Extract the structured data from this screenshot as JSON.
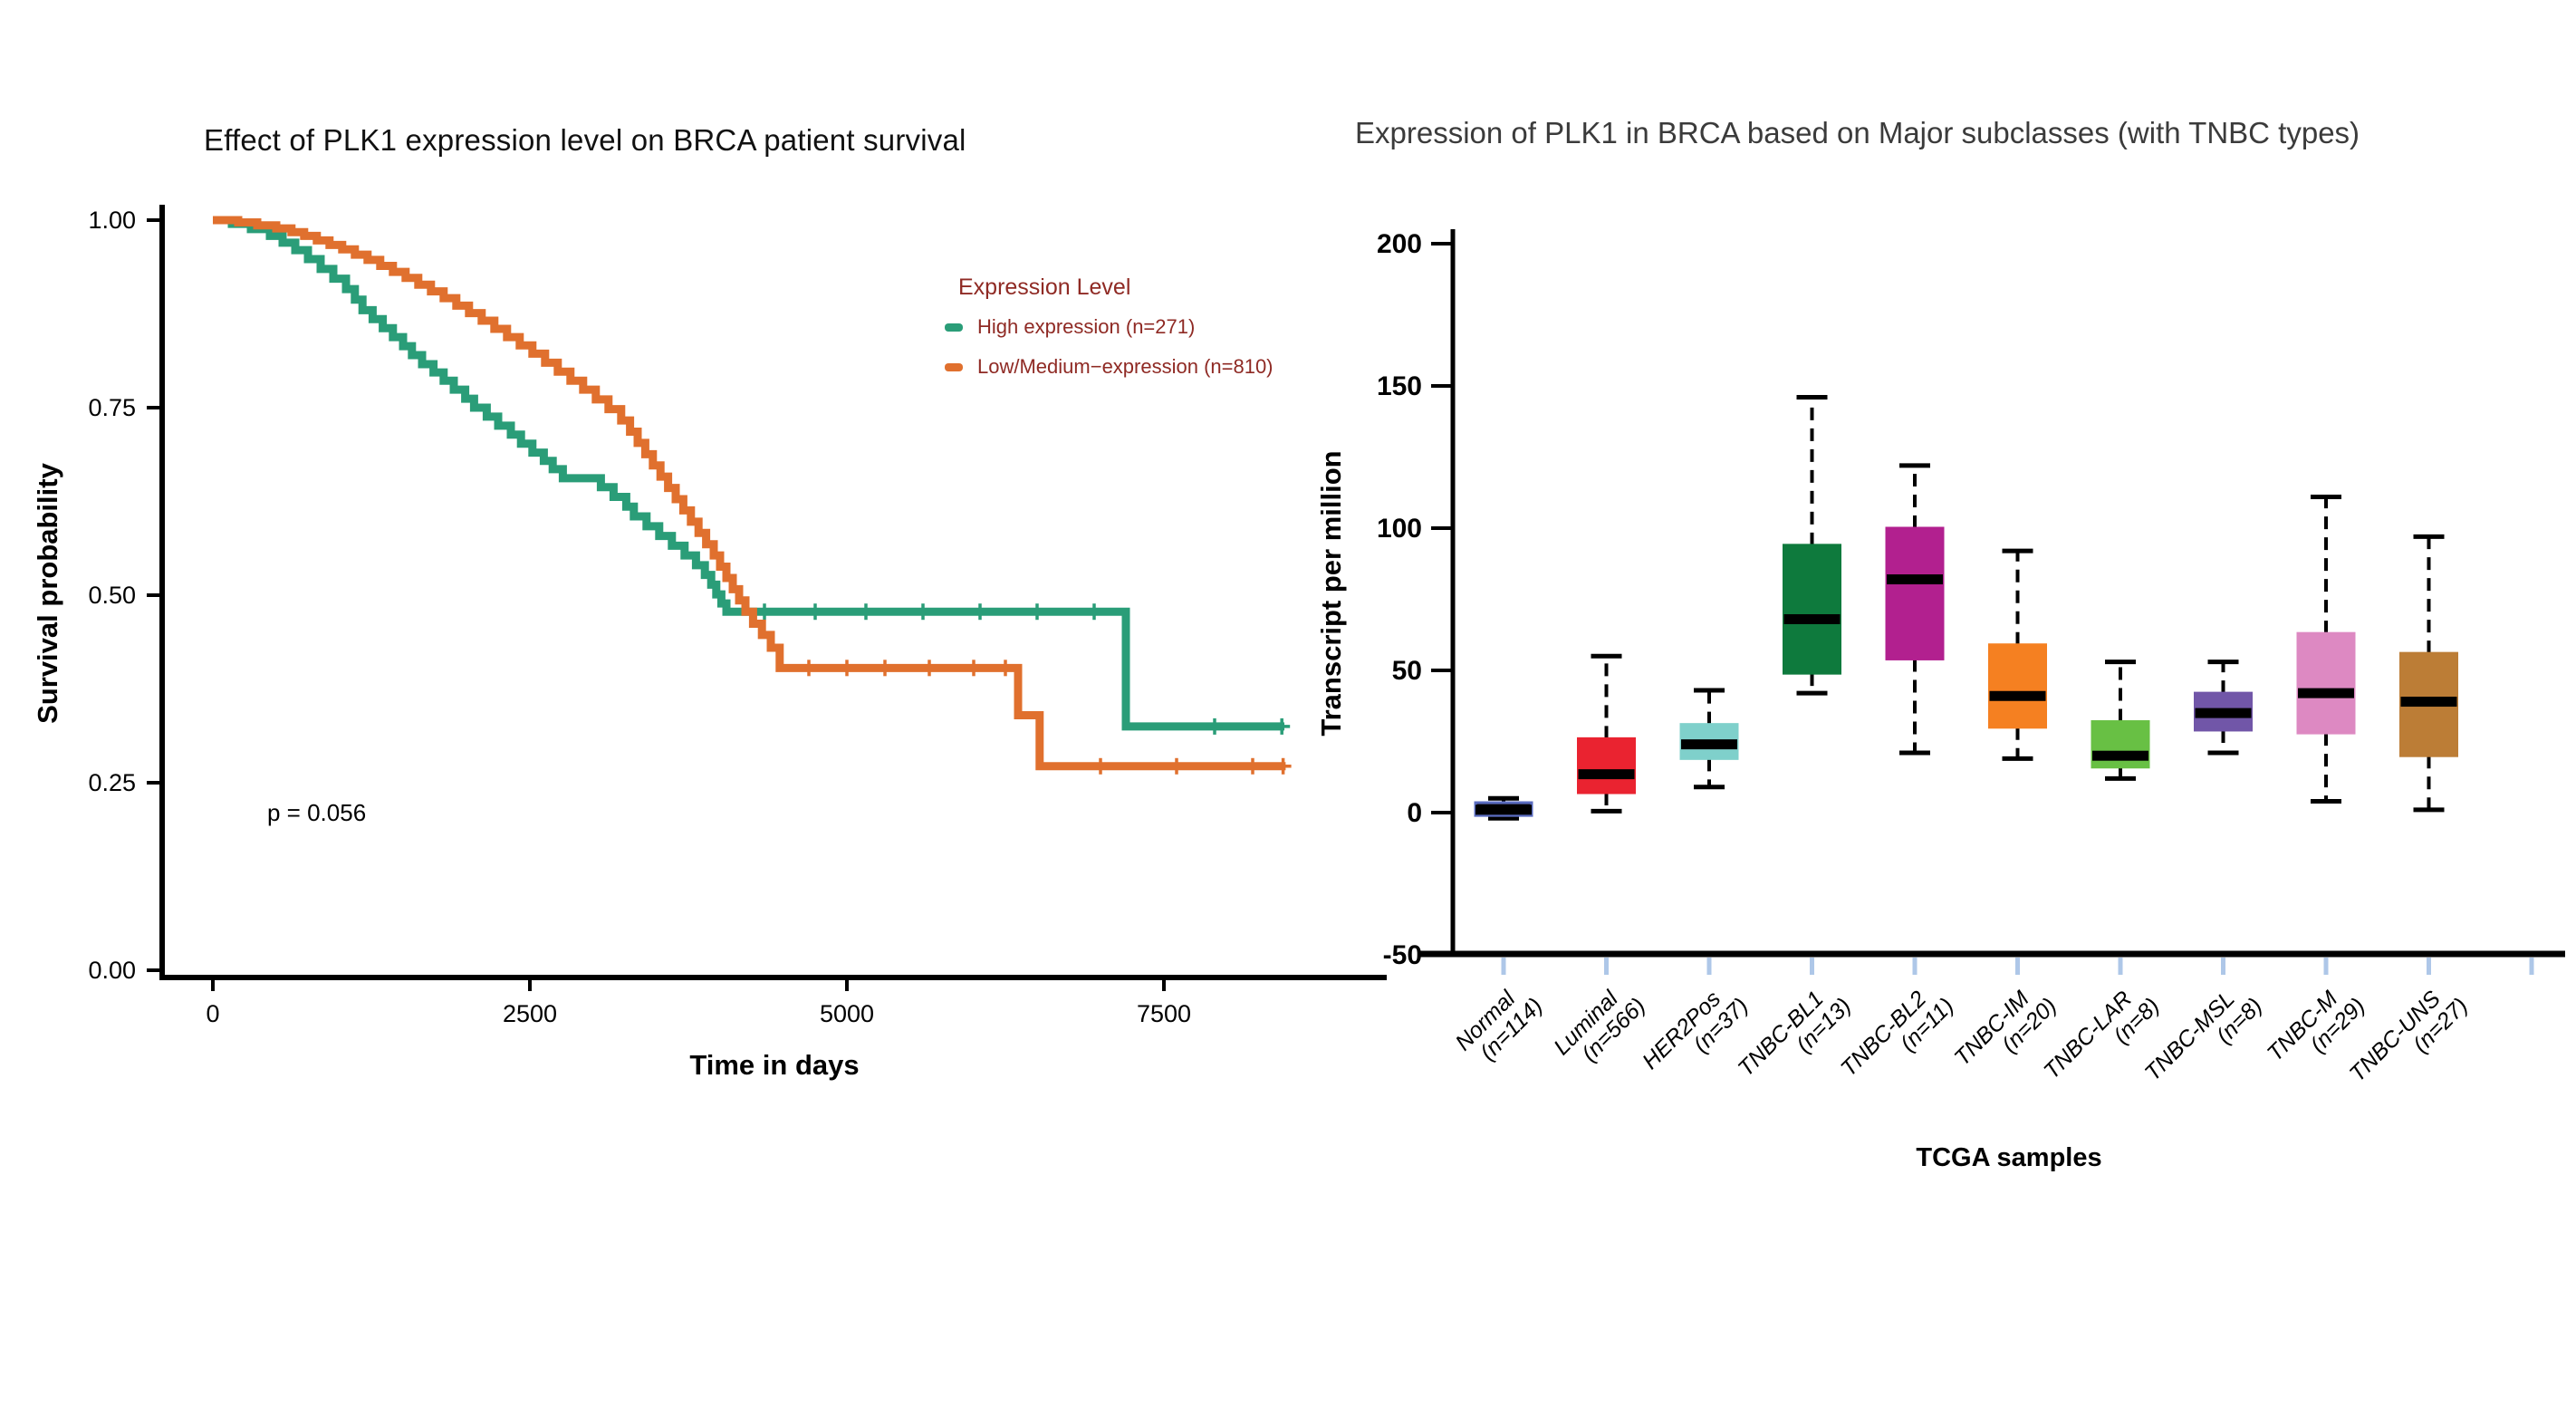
{
  "chart_data": [
    {
      "type": "line",
      "subtype": "kaplan_meier_step",
      "title": "Effect of PLK1 expression level on BRCA patient survival",
      "xlabel": "Time in days",
      "ylabel": "Survival probability",
      "p_value": "p = 0.056",
      "xlim": [
        0,
        9250
      ],
      "ylim": [
        0,
        1
      ],
      "x_ticks": [
        0,
        2500,
        5000,
        7500
      ],
      "y_ticks": [
        {
          "value": 1.0,
          "label": "1.00"
        },
        {
          "value": 0.75,
          "label": "0.75"
        },
        {
          "value": 0.5,
          "label": "0.50"
        },
        {
          "value": 0.25,
          "label": "0.25"
        },
        {
          "value": 0.0,
          "label": "0.00"
        }
      ],
      "grid": false,
      "legend": {
        "title": "Expression Level",
        "color": "#8f2a24",
        "position": "right-upper",
        "items": [
          {
            "label": "High expression (n=271)",
            "color": "#2a9d78"
          },
          {
            "label": "Low/Medium−expression (n=810)",
            "color": "#e0702e"
          }
        ]
      },
      "series": [
        {
          "name": "High expression",
          "n": 271,
          "color": "#2a9d78",
          "points": [
            [
              0,
              1
            ],
            [
              150,
              0.995
            ],
            [
              300,
              0.988
            ],
            [
              450,
              0.979
            ],
            [
              550,
              0.97
            ],
            [
              650,
              0.96
            ],
            [
              750,
              0.948
            ],
            [
              850,
              0.935
            ],
            [
              950,
              0.922
            ],
            [
              1050,
              0.908
            ],
            [
              1120,
              0.894
            ],
            [
              1180,
              0.88
            ],
            [
              1260,
              0.868
            ],
            [
              1340,
              0.856
            ],
            [
              1420,
              0.844
            ],
            [
              1500,
              0.832
            ],
            [
              1570,
              0.82
            ],
            [
              1650,
              0.808
            ],
            [
              1740,
              0.797
            ],
            [
              1820,
              0.786
            ],
            [
              1900,
              0.774
            ],
            [
              1990,
              0.762
            ],
            [
              2060,
              0.75
            ],
            [
              2160,
              0.738
            ],
            [
              2250,
              0.726
            ],
            [
              2350,
              0.714
            ],
            [
              2430,
              0.702
            ],
            [
              2520,
              0.69
            ],
            [
              2610,
              0.679
            ],
            [
              2680,
              0.668
            ],
            [
              2760,
              0.656
            ],
            [
              3060,
              0.644
            ],
            [
              3160,
              0.631
            ],
            [
              3260,
              0.618
            ],
            [
              3320,
              0.605
            ],
            [
              3420,
              0.592
            ],
            [
              3520,
              0.579
            ],
            [
              3620,
              0.566
            ],
            [
              3720,
              0.553
            ],
            [
              3810,
              0.54
            ],
            [
              3880,
              0.527
            ],
            [
              3930,
              0.514
            ],
            [
              3970,
              0.501
            ],
            [
              4010,
              0.489
            ],
            [
              4050,
              0.478
            ],
            [
              7200,
              0.478
            ],
            [
              7200,
              0.325
            ],
            [
              8450,
              0.325
            ]
          ],
          "censor_marks": [
            [
              4350,
              0.478
            ],
            [
              4750,
              0.478
            ],
            [
              5150,
              0.478
            ],
            [
              5600,
              0.478
            ],
            [
              6050,
              0.478
            ],
            [
              6500,
              0.478
            ],
            [
              6950,
              0.478
            ],
            [
              7900,
              0.325
            ],
            [
              8430,
              0.325
            ]
          ]
        },
        {
          "name": "Low/Medium-expression",
          "n": 810,
          "color": "#e0702e",
          "points": [
            [
              0,
              1
            ],
            [
              200,
              0.997
            ],
            [
              350,
              0.993
            ],
            [
              500,
              0.989
            ],
            [
              620,
              0.984
            ],
            [
              720,
              0.979
            ],
            [
              820,
              0.973
            ],
            [
              920,
              0.967
            ],
            [
              1020,
              0.961
            ],
            [
              1120,
              0.954
            ],
            [
              1220,
              0.947
            ],
            [
              1320,
              0.939
            ],
            [
              1420,
              0.931
            ],
            [
              1520,
              0.923
            ],
            [
              1620,
              0.914
            ],
            [
              1720,
              0.905
            ],
            [
              1820,
              0.896
            ],
            [
              1920,
              0.886
            ],
            [
              2020,
              0.876
            ],
            [
              2120,
              0.866
            ],
            [
              2220,
              0.855
            ],
            [
              2320,
              0.844
            ],
            [
              2420,
              0.833
            ],
            [
              2520,
              0.822
            ],
            [
              2620,
              0.81
            ],
            [
              2720,
              0.798
            ],
            [
              2820,
              0.786
            ],
            [
              2920,
              0.774
            ],
            [
              3020,
              0.761
            ],
            [
              3120,
              0.748
            ],
            [
              3220,
              0.733
            ],
            [
              3290,
              0.718
            ],
            [
              3350,
              0.703
            ],
            [
              3410,
              0.688
            ],
            [
              3470,
              0.673
            ],
            [
              3530,
              0.658
            ],
            [
              3590,
              0.643
            ],
            [
              3650,
              0.628
            ],
            [
              3710,
              0.613
            ],
            [
              3770,
              0.598
            ],
            [
              3830,
              0.583
            ],
            [
              3890,
              0.568
            ],
            [
              3950,
              0.553
            ],
            [
              4000,
              0.538
            ],
            [
              4050,
              0.523
            ],
            [
              4100,
              0.508
            ],
            [
              4150,
              0.493
            ],
            [
              4200,
              0.478
            ],
            [
              4260,
              0.462
            ],
            [
              4330,
              0.447
            ],
            [
              4400,
              0.43
            ],
            [
              4470,
              0.403
            ],
            [
              6350,
              0.403
            ],
            [
              6350,
              0.34
            ],
            [
              6520,
              0.34
            ],
            [
              6520,
              0.272
            ],
            [
              8460,
              0.272
            ]
          ],
          "censor_marks": [
            [
              4700,
              0.403
            ],
            [
              5000,
              0.403
            ],
            [
              5300,
              0.403
            ],
            [
              5650,
              0.403
            ],
            [
              6000,
              0.403
            ],
            [
              6250,
              0.403
            ],
            [
              7000,
              0.272
            ],
            [
              7600,
              0.272
            ],
            [
              8200,
              0.272
            ],
            [
              8440,
              0.272
            ]
          ]
        }
      ]
    },
    {
      "type": "box",
      "title": "Expression of PLK1 in BRCA based on Major subclasses (with TNBC types)",
      "title_color": "#3b3b3b",
      "xlabel": "TCGA samples",
      "ylabel": "Transcript per million",
      "ylim": [
        -50,
        200
      ],
      "y_ticks": [
        {
          "value": 200,
          "label": "200"
        },
        {
          "value": 150,
          "label": "150"
        },
        {
          "value": 100,
          "label": "100"
        },
        {
          "value": 50,
          "label": "50"
        },
        {
          "value": 0,
          "label": "0"
        },
        {
          "value": -50,
          "label": "-50"
        }
      ],
      "grid": false,
      "x_tick_color": "#aec7e8",
      "groups": [
        {
          "label": "Normal",
          "n_label": "(n=114)",
          "n": 114,
          "fill": "#14121c",
          "edge": "#5a6cc0",
          "whisker_low": -2,
          "q1": -1,
          "median": 1,
          "q3": 3.5,
          "whisker_high": 5
        },
        {
          "label": "Luminal",
          "n_label": "(n=566)",
          "n": 566,
          "fill": "#ea2330",
          "edge": "#ea2330",
          "whisker_low": 0.5,
          "q1": 7,
          "median": 13.5,
          "q3": 26,
          "whisker_high": 55
        },
        {
          "label": "HER2Pos",
          "n_label": "(n=37)",
          "n": 37,
          "fill": "#7fd0cb",
          "edge": "#7fd0cb",
          "whisker_low": 9,
          "q1": 19,
          "median": 24,
          "q3": 31,
          "whisker_high": 43
        },
        {
          "label": "TNBC-BL1",
          "n_label": "(n=13)",
          "n": 13,
          "fill": "#0e7a3d",
          "edge": "#0e7a3d",
          "whisker_low": 42,
          "q1": 49,
          "median": 68,
          "q3": 94,
          "whisker_high": 146
        },
        {
          "label": "TNBC-BL2",
          "n_label": "(n=11)",
          "n": 11,
          "fill": "#b2208f",
          "edge": "#b2208f",
          "whisker_low": 21,
          "q1": 54,
          "median": 82,
          "q3": 100,
          "whisker_high": 122
        },
        {
          "label": "TNBC-IM",
          "n_label": "(n=20)",
          "n": 20,
          "fill": "#f58021",
          "edge": "#f58021",
          "whisker_low": 19,
          "q1": 30,
          "median": 41,
          "q3": 59,
          "whisker_high": 92
        },
        {
          "label": "TNBC-LAR",
          "n_label": "(n=8)",
          "n": 8,
          "fill": "#68c044",
          "edge": "#68c044",
          "whisker_low": 12,
          "q1": 16,
          "median": 20,
          "q3": 32,
          "whisker_high": 53
        },
        {
          "label": "TNBC-MSL",
          "n_label": "(n=8)",
          "n": 8,
          "fill": "#7156a8",
          "edge": "#7156a8",
          "whisker_low": 21,
          "q1": 29,
          "median": 35,
          "q3": 42,
          "whisker_high": 53
        },
        {
          "label": "TNBC-M",
          "n_label": "(n=29)",
          "n": 29,
          "fill": "#dd89c2",
          "edge": "#dd89c2",
          "whisker_low": 4,
          "q1": 28,
          "median": 42,
          "q3": 63,
          "whisker_high": 111
        },
        {
          "label": "TNBC-UNS",
          "n_label": "(n=27)",
          "n": 27,
          "fill": "#bc7d36",
          "edge": "#bc7d36",
          "whisker_low": 1,
          "q1": 20,
          "median": 39,
          "q3": 56,
          "whisker_high": 97
        }
      ]
    }
  ]
}
